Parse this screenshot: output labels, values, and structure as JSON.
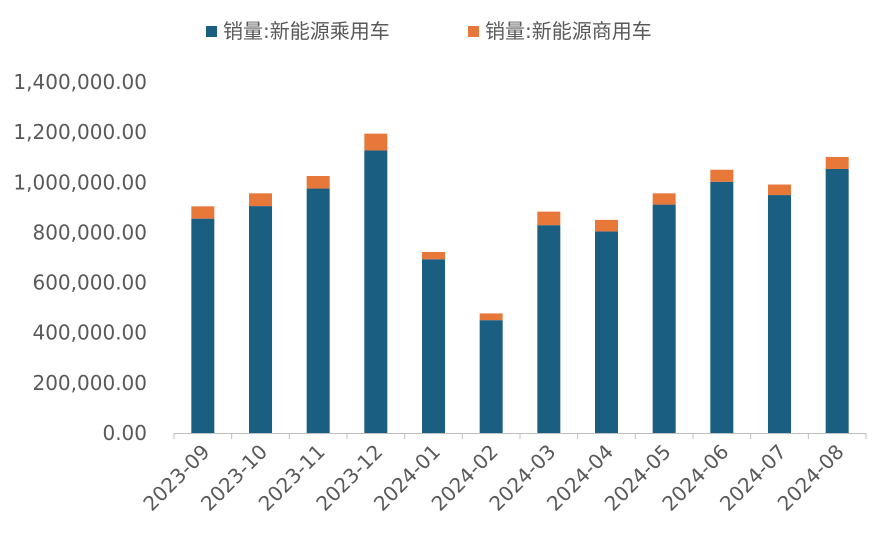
{
  "chart_data": {
    "type": "bar",
    "stacked": true,
    "categories": [
      "2023-09",
      "2023-10",
      "2023-11",
      "2023-12",
      "2024-01",
      "2024-02",
      "2024-03",
      "2024-04",
      "2024-05",
      "2024-06",
      "2024-07",
      "2024-08"
    ],
    "series": [
      {
        "name": "销量:新能源乘用车",
        "color": "#1a5e82",
        "values": [
          855000,
          905000,
          975000,
          1127000,
          693000,
          450000,
          829000,
          804000,
          911000,
          1002000,
          949000,
          1053000
        ]
      },
      {
        "name": "销量:新能源商用车",
        "color": "#e8773a",
        "values": [
          49000,
          51000,
          50000,
          67000,
          29000,
          27000,
          54000,
          46000,
          45000,
          48000,
          42000,
          48000
        ]
      }
    ],
    "y_ticks": [
      "0.00",
      "200,000.00",
      "400,000.00",
      "600,000.00",
      "800,000.00",
      "1,000,000.00",
      "1,200,000.00",
      "1,400,000.00"
    ],
    "ylim": [
      0,
      1400000
    ],
    "legend_position": "top",
    "grid": false
  }
}
